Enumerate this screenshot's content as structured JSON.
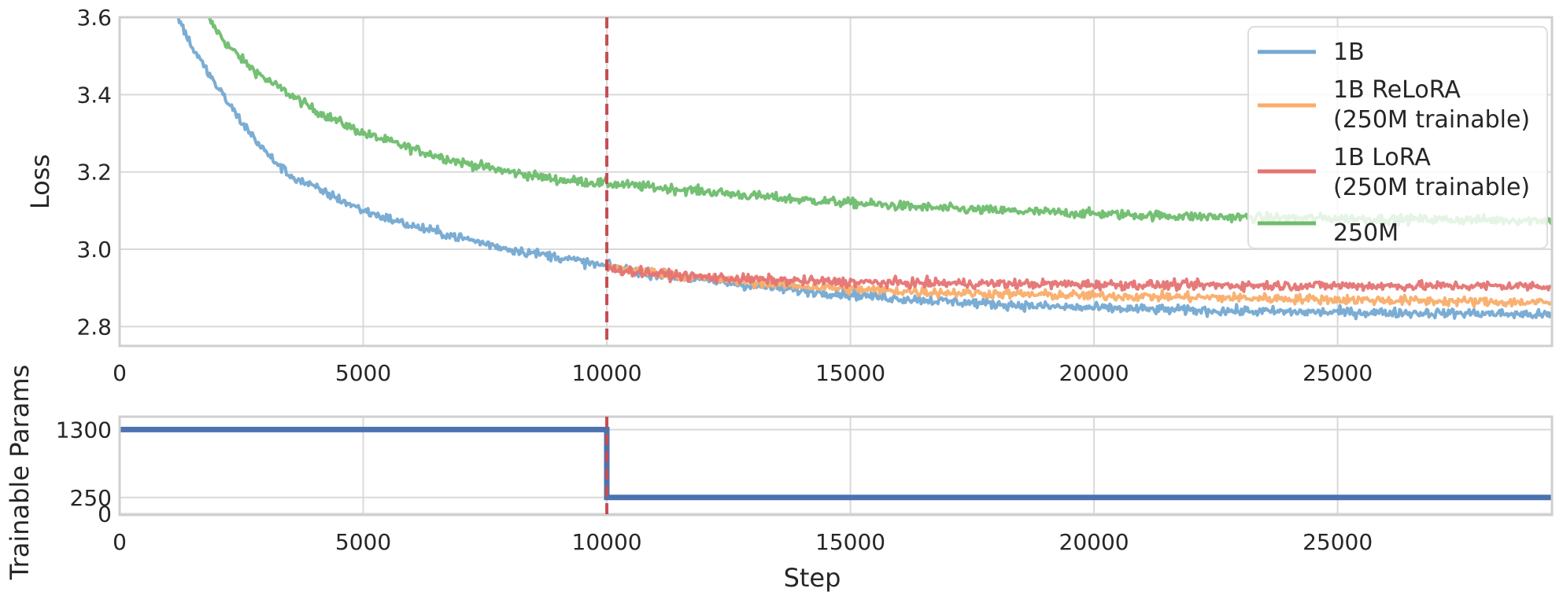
{
  "chart_data": [
    {
      "type": "line",
      "title": "",
      "xlabel": "",
      "ylabel": "Loss",
      "xlim": [
        0,
        29400
      ],
      "ylim": [
        2.75,
        3.6
      ],
      "xticks": [
        0,
        5000,
        10000,
        15000,
        20000,
        25000
      ],
      "yticks": [
        2.8,
        3.0,
        3.2,
        3.4,
        3.6
      ],
      "grid": true,
      "legend_position": "top-right",
      "vline": {
        "x": 10000,
        "color": "#c44e52",
        "style": "dashed"
      },
      "series": [
        {
          "name": "1B",
          "color": "#74a9d2",
          "x": [
            1200,
            1500,
            2000,
            2500,
            3000,
            3500,
            4000,
            5000,
            6000,
            7000,
            8000,
            9000,
            10000,
            11000,
            12000,
            13000,
            14000,
            15000,
            16000,
            17000,
            18000,
            19000,
            20000,
            21000,
            22000,
            23000,
            24000,
            25000,
            26000,
            27000,
            28000,
            29400
          ],
          "y": [
            3.6,
            3.52,
            3.42,
            3.33,
            3.25,
            3.19,
            3.16,
            3.1,
            3.06,
            3.03,
            3.0,
            2.98,
            2.955,
            2.935,
            2.92,
            2.905,
            2.893,
            2.883,
            2.873,
            2.865,
            2.858,
            2.852,
            2.848,
            2.845,
            2.842,
            2.84,
            2.838,
            2.837,
            2.836,
            2.835,
            2.834,
            2.83
          ]
        },
        {
          "name": "1B ReLoRA\n(250M trainable)",
          "color": "#f9ad6a",
          "x": [
            10000,
            11000,
            12000,
            13000,
            14000,
            15000,
            16000,
            17000,
            18000,
            19000,
            20000,
            21000,
            22000,
            23000,
            24000,
            25000,
            26000,
            27000,
            28000,
            29400
          ],
          "y": [
            2.955,
            2.94,
            2.925,
            2.915,
            2.905,
            2.897,
            2.892,
            2.888,
            2.885,
            2.882,
            2.88,
            2.878,
            2.876,
            2.874,
            2.872,
            2.87,
            2.868,
            2.866,
            2.864,
            2.862
          ]
        },
        {
          "name": "1B LoRA\n(250M trainable)",
          "color": "#e57373",
          "x": [
            10000,
            11000,
            12000,
            13000,
            14000,
            15000,
            16000,
            17000,
            18000,
            19000,
            20000,
            21000,
            22000,
            23000,
            24000,
            25000,
            26000,
            27000,
            28000,
            29400
          ],
          "y": [
            2.95,
            2.937,
            2.928,
            2.922,
            2.918,
            2.915,
            2.913,
            2.912,
            2.911,
            2.91,
            2.909,
            2.908,
            2.907,
            2.907,
            2.906,
            2.906,
            2.905,
            2.905,
            2.905,
            2.905
          ]
        },
        {
          "name": "250M",
          "color": "#6dbd6d",
          "x": [
            1800,
            2200,
            2600,
            3000,
            3500,
            4000,
            5000,
            6000,
            7000,
            8000,
            9000,
            10000,
            11000,
            12000,
            13000,
            14000,
            15000,
            16000,
            17000,
            18000,
            19000,
            20000,
            21000,
            22000,
            23000,
            24000,
            25000,
            26000,
            27000,
            28000,
            29400
          ],
          "y": [
            3.6,
            3.53,
            3.48,
            3.44,
            3.4,
            3.36,
            3.3,
            3.26,
            3.225,
            3.2,
            3.18,
            3.17,
            3.16,
            3.15,
            3.138,
            3.128,
            3.12,
            3.112,
            3.105,
            3.1,
            3.096,
            3.092,
            3.088,
            3.085,
            3.083,
            3.081,
            3.08,
            3.078,
            3.077,
            3.076,
            3.075
          ]
        }
      ]
    },
    {
      "type": "line",
      "title": "",
      "xlabel": "Step",
      "ylabel": "Trainable Params",
      "xlim": [
        0,
        29400
      ],
      "ylim": [
        -20,
        1500
      ],
      "xticks": [
        0,
        5000,
        10000,
        15000,
        20000,
        25000
      ],
      "yticks": [
        0,
        250,
        1300
      ],
      "grid": true,
      "vline": {
        "x": 10000,
        "color": "#c44e52",
        "style": "dashed"
      },
      "series": [
        {
          "color": "#4c72b0",
          "x": [
            0,
            10000,
            10000,
            29400
          ],
          "y": [
            1300,
            1300,
            250,
            250
          ]
        }
      ]
    }
  ]
}
